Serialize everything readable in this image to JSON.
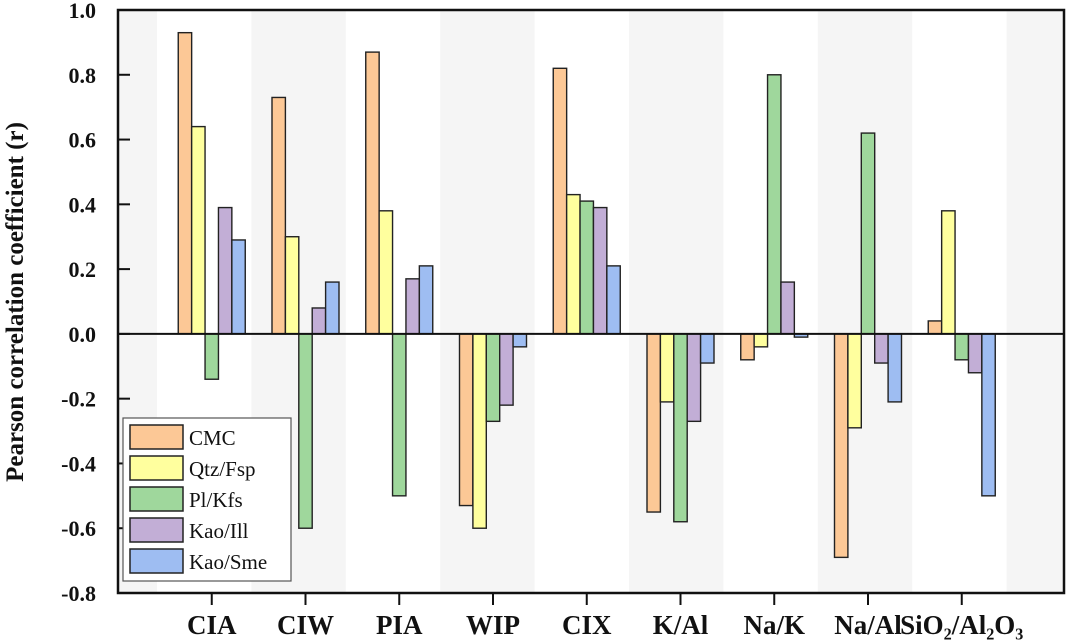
{
  "chart_data": {
    "type": "bar",
    "title": "",
    "xlabel": "",
    "ylabel": "Pearson correlation coefficient (r)",
    "ylim": [
      -0.8,
      1.0
    ],
    "yticks": [
      "-0.8",
      "-0.6",
      "-0.4",
      "-0.2",
      "0.0",
      "0.2",
      "0.4",
      "0.6",
      "0.8",
      "1.0"
    ],
    "categories": [
      "CIA",
      "CIW",
      "PIA",
      "WIP",
      "CIX",
      "K/Al",
      "Na/K",
      "Na/Al",
      "SiO2/Al2O3"
    ],
    "category_labels": [
      "CIA",
      "CIW",
      "PIA",
      "WIP",
      "CIX",
      "K/Al",
      "Na/K",
      "Na/Al",
      "SiO₂/Al₂O₃"
    ],
    "legend_position": "bottom-left",
    "grid": false,
    "series": [
      {
        "name": "CMC",
        "color": "#fcc896",
        "values": [
          0.93,
          0.73,
          0.87,
          -0.53,
          0.82,
          -0.55,
          -0.08,
          -0.69,
          0.04
        ]
      },
      {
        "name": "Qtz/Fsp",
        "color": "#ffff9e",
        "values": [
          0.64,
          0.3,
          0.38,
          -0.6,
          0.43,
          -0.21,
          -0.04,
          -0.29,
          0.38
        ]
      },
      {
        "name": "Pl/Kfs",
        "color": "#9fd79c",
        "values": [
          -0.14,
          -0.6,
          -0.5,
          -0.27,
          0.41,
          -0.58,
          0.8,
          0.62,
          -0.08
        ]
      },
      {
        "name": "Kao/Ill",
        "color": "#c2aed6",
        "values": [
          0.39,
          0.08,
          0.17,
          -0.22,
          0.39,
          -0.27,
          0.16,
          -0.09,
          -0.12
        ]
      },
      {
        "name": "Kao/Sme",
        "color": "#9ebdf2",
        "values": [
          0.29,
          0.16,
          0.21,
          -0.04,
          0.21,
          -0.09,
          -0.01,
          -0.21,
          -0.5
        ]
      }
    ]
  }
}
